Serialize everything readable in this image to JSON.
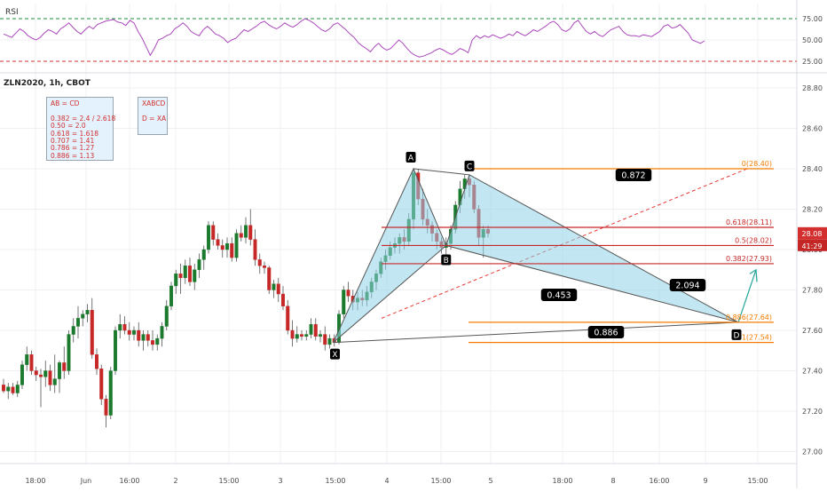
{
  "chart_data": {
    "type": "candlestick",
    "symbol_label": "ZLN2020, 1h, CBOT",
    "rsi_panel": {
      "label": "RSI",
      "yticks": [
        "75.00",
        "50.00",
        "25.00"
      ],
      "levels": [
        75,
        25
      ],
      "values": [
        57,
        55,
        53,
        58,
        63,
        60,
        55,
        52,
        50,
        53,
        58,
        62,
        60,
        57,
        63,
        66,
        70,
        65,
        60,
        57,
        62,
        66,
        63,
        68,
        70,
        72,
        73,
        74,
        71,
        70,
        67,
        73,
        70,
        60,
        52,
        42,
        32,
        40,
        50,
        52,
        55,
        57,
        63,
        66,
        70,
        66,
        60,
        57,
        55,
        62,
        66,
        62,
        57,
        55,
        52,
        47,
        50,
        52,
        57,
        62,
        60,
        63,
        66,
        70,
        72,
        68,
        65,
        63,
        66,
        70,
        67,
        65,
        68,
        72,
        75,
        73,
        70,
        66,
        62,
        60,
        63,
        68,
        70,
        66,
        62,
        57,
        53,
        47,
        43,
        40,
        36,
        42,
        46,
        41,
        38,
        40,
        45,
        50,
        46,
        40,
        35,
        32,
        30,
        31,
        33,
        35,
        38,
        40,
        38,
        35,
        33,
        36,
        40,
        38,
        35,
        50,
        55,
        52,
        55,
        53,
        56,
        54,
        52,
        54,
        57,
        55,
        60,
        57,
        55,
        58,
        62,
        60,
        63,
        66,
        70,
        72,
        68,
        62,
        60,
        63,
        70,
        73,
        66,
        60,
        57,
        60,
        56,
        54,
        58,
        62,
        64,
        66,
        60,
        56,
        55,
        55,
        54,
        56,
        55,
        54,
        57,
        60,
        66,
        68,
        64,
        65,
        68,
        63,
        58,
        50,
        48,
        46,
        49
      ]
    },
    "price_axis": {
      "ticks": [
        "28.80",
        "28.60",
        "28.40",
        "28.20",
        "28.00",
        "27.80",
        "27.60",
        "27.40",
        "27.20",
        "27.00"
      ],
      "range": [
        26.94,
        28.88
      ],
      "last_price": "28.08",
      "countdown": "41:29"
    },
    "time_axis": {
      "labels": [
        "18:00",
        "Jun",
        "16:00",
        "2",
        "15:00",
        "3",
        "15:00",
        "4",
        "15:00",
        "5",
        "18:00",
        "8",
        "16:00",
        "9",
        "15:00"
      ]
    },
    "candles": [
      [
        27.33,
        27.36,
        27.29,
        27.3
      ],
      [
        27.3,
        27.34,
        27.26,
        27.32
      ],
      [
        27.32,
        27.34,
        27.28,
        27.29
      ],
      [
        27.29,
        27.35,
        27.27,
        27.33
      ],
      [
        27.33,
        27.45,
        27.31,
        27.43
      ],
      [
        27.43,
        27.52,
        27.4,
        27.48
      ],
      [
        27.48,
        27.5,
        27.38,
        27.4
      ],
      [
        27.4,
        27.42,
        27.35,
        27.38
      ],
      [
        27.38,
        27.41,
        27.22,
        27.37
      ],
      [
        27.37,
        27.45,
        27.32,
        27.4
      ],
      [
        27.4,
        27.43,
        27.3,
        27.33
      ],
      [
        27.33,
        27.48,
        27.29,
        27.36
      ],
      [
        27.36,
        27.45,
        27.29,
        27.44
      ],
      [
        27.44,
        27.52,
        27.36,
        27.4
      ],
      [
        27.4,
        27.6,
        27.38,
        27.58
      ],
      [
        27.58,
        27.66,
        27.54,
        27.62
      ],
      [
        27.62,
        27.72,
        27.56,
        27.66
      ],
      [
        27.66,
        27.7,
        27.62,
        27.68
      ],
      [
        27.68,
        27.73,
        27.64,
        27.7
      ],
      [
        27.7,
        27.76,
        27.46,
        27.48
      ],
      [
        27.48,
        27.51,
        27.38,
        27.41
      ],
      [
        27.41,
        27.43,
        27.23,
        27.26
      ],
      [
        27.26,
        27.28,
        27.12,
        27.18
      ],
      [
        27.18,
        27.42,
        27.16,
        27.4
      ],
      [
        27.4,
        27.62,
        27.38,
        27.6
      ],
      [
        27.6,
        27.68,
        27.56,
        27.63
      ],
      [
        27.63,
        27.67,
        27.58,
        27.6
      ],
      [
        27.6,
        27.64,
        27.55,
        27.58
      ],
      [
        27.58,
        27.62,
        27.55,
        27.6
      ],
      [
        27.6,
        27.64,
        27.52,
        27.55
      ],
      [
        27.55,
        27.6,
        27.5,
        27.58
      ],
      [
        27.58,
        27.6,
        27.52,
        27.55
      ],
      [
        27.55,
        27.6,
        27.5,
        27.53
      ],
      [
        27.53,
        27.58,
        27.5,
        27.56
      ],
      [
        27.56,
        27.64,
        27.52,
        27.62
      ],
      [
        27.62,
        27.75,
        27.6,
        27.72
      ],
      [
        27.72,
        27.84,
        27.7,
        27.82
      ],
      [
        27.82,
        27.9,
        27.78,
        27.88
      ],
      [
        27.88,
        27.93,
        27.78,
        27.86
      ],
      [
        27.86,
        27.95,
        27.83,
        27.92
      ],
      [
        27.92,
        27.96,
        27.82,
        27.84
      ],
      [
        27.84,
        27.93,
        27.8,
        27.9
      ],
      [
        27.9,
        27.98,
        27.86,
        27.95
      ],
      [
        27.95,
        28.02,
        27.9,
        28.0
      ],
      [
        28.0,
        28.14,
        27.98,
        28.12
      ],
      [
        28.12,
        28.14,
        28.02,
        28.05
      ],
      [
        28.05,
        28.08,
        28.0,
        28.02
      ],
      [
        28.02,
        28.05,
        27.96,
        28.0
      ],
      [
        28.0,
        28.06,
        27.96,
        28.03
      ],
      [
        28.03,
        28.06,
        27.94,
        27.96
      ],
      [
        27.96,
        28.1,
        27.94,
        28.08
      ],
      [
        28.08,
        28.12,
        28.04,
        28.06
      ],
      [
        28.06,
        28.16,
        28.03,
        28.12
      ],
      [
        28.12,
        28.2,
        28.02,
        28.05
      ],
      [
        28.05,
        28.1,
        27.92,
        27.95
      ],
      [
        27.95,
        27.98,
        27.88,
        27.92
      ],
      [
        27.92,
        27.94,
        27.88,
        27.91
      ],
      [
        27.91,
        27.92,
        27.78,
        27.8
      ],
      [
        27.8,
        27.85,
        27.76,
        27.83
      ],
      [
        27.83,
        27.86,
        27.74,
        27.78
      ],
      [
        27.78,
        27.82,
        27.7,
        27.72
      ],
      [
        27.72,
        27.75,
        27.58,
        27.6
      ],
      [
        27.6,
        27.65,
        27.52,
        27.56
      ],
      [
        27.56,
        27.62,
        27.54,
        27.58
      ],
      [
        27.58,
        27.6,
        27.55,
        27.57
      ],
      [
        27.57,
        27.6,
        27.55,
        27.58
      ],
      [
        27.58,
        27.66,
        27.56,
        27.63
      ],
      [
        27.63,
        27.66,
        27.55,
        27.57
      ],
      [
        27.57,
        27.6,
        27.54,
        27.58
      ],
      [
        27.58,
        27.62,
        27.5,
        27.53
      ],
      [
        27.53,
        27.58,
        27.51,
        27.56
      ],
      [
        27.56,
        27.58,
        27.52,
        27.54
      ],
      [
        27.54,
        27.7,
        27.53,
        27.68
      ],
      [
        27.68,
        27.82,
        27.66,
        27.8
      ],
      [
        27.8,
        27.84,
        27.74,
        27.77
      ],
      [
        27.77,
        27.8,
        27.7,
        27.74
      ],
      [
        27.74,
        27.79,
        27.7,
        27.76
      ],
      [
        27.76,
        27.8,
        27.72,
        27.75
      ],
      [
        27.75,
        27.82,
        27.72,
        27.79
      ],
      [
        27.79,
        27.86,
        27.76,
        27.84
      ],
      [
        27.84,
        27.9,
        27.8,
        27.88
      ],
      [
        27.88,
        27.96,
        27.86,
        27.94
      ],
      [
        27.94,
        28.0,
        27.9,
        27.97
      ],
      [
        27.97,
        28.04,
        27.95,
        28.01
      ],
      [
        28.01,
        28.06,
        27.98,
        28.03
      ],
      [
        28.03,
        28.08,
        27.98,
        28.06
      ],
      [
        28.06,
        28.1,
        28.0,
        28.04
      ],
      [
        28.04,
        28.18,
        28.02,
        28.15
      ],
      [
        28.15,
        28.4,
        28.1,
        28.38
      ],
      [
        28.38,
        28.4,
        28.22,
        28.25
      ],
      [
        28.25,
        28.3,
        28.12,
        28.15
      ],
      [
        28.15,
        28.2,
        28.08,
        28.12
      ],
      [
        28.12,
        28.14,
        28.04,
        28.08
      ],
      [
        28.08,
        28.1,
        28.0,
        28.04
      ],
      [
        28.04,
        28.06,
        27.98,
        28.01
      ],
      [
        28.01,
        28.06,
        27.97,
        28.03
      ],
      [
        28.03,
        28.12,
        28.0,
        28.1
      ],
      [
        28.1,
        28.24,
        28.08,
        28.22
      ],
      [
        28.22,
        28.34,
        28.18,
        28.3
      ],
      [
        28.3,
        28.37,
        28.25,
        28.35
      ],
      [
        28.35,
        28.37,
        28.26,
        28.32
      ],
      [
        28.32,
        28.34,
        28.18,
        28.2
      ],
      [
        28.2,
        28.22,
        28.02,
        28.06
      ],
      [
        28.06,
        28.12,
        27.96,
        28.1
      ],
      [
        28.1,
        28.12,
        28.06,
        28.08
      ]
    ],
    "fib_levels": [
      {
        "label": "0(28.40)",
        "value": 28.4,
        "color": "#f57c00"
      },
      {
        "label": "0.618(28.11)",
        "value": 28.11,
        "color": "#c62828"
      },
      {
        "label": "0.5(28.02)",
        "value": 28.02,
        "color": "#c62828"
      },
      {
        "label": "0.382(27.93)",
        "value": 27.93,
        "color": "#c62828"
      },
      {
        "label": "0.886(27.64)",
        "value": 27.64,
        "color": "#f57c00"
      },
      {
        "label": "1(27.54)",
        "value": 27.54,
        "color": "#f57c00"
      }
    ],
    "pattern_points": {
      "X": {
        "label": "X",
        "value": 27.54
      },
      "A": {
        "label": "A",
        "value": 28.4
      },
      "B": {
        "label": "B",
        "value": 28.02
      },
      "C": {
        "label": "C",
        "value": 28.37
      },
      "D": {
        "label": "D",
        "value": 27.64
      }
    },
    "ratio_labels": [
      "0.872",
      "0.453",
      "2.094",
      "0.886"
    ],
    "info_box_1": [
      "AB =  CD",
      "",
      "0.382 = 2.4 / 2.618",
      "0.50   = 2.0",
      "0.618 = 1.618",
      "0.707 = 1.41",
      "0.786 = 1.27",
      "0.886 = 1.13"
    ],
    "info_box_2": [
      "XABCD",
      "",
      "D = XA"
    ],
    "colors": {
      "up": "#26a69a",
      "up_body": "#1b7a2d",
      "down": "#c62828",
      "rsi": "#ab47bc",
      "pattern_fill": "#8fd3e8",
      "trendline": "#e53935",
      "price_tag": "#d32f2f"
    }
  }
}
